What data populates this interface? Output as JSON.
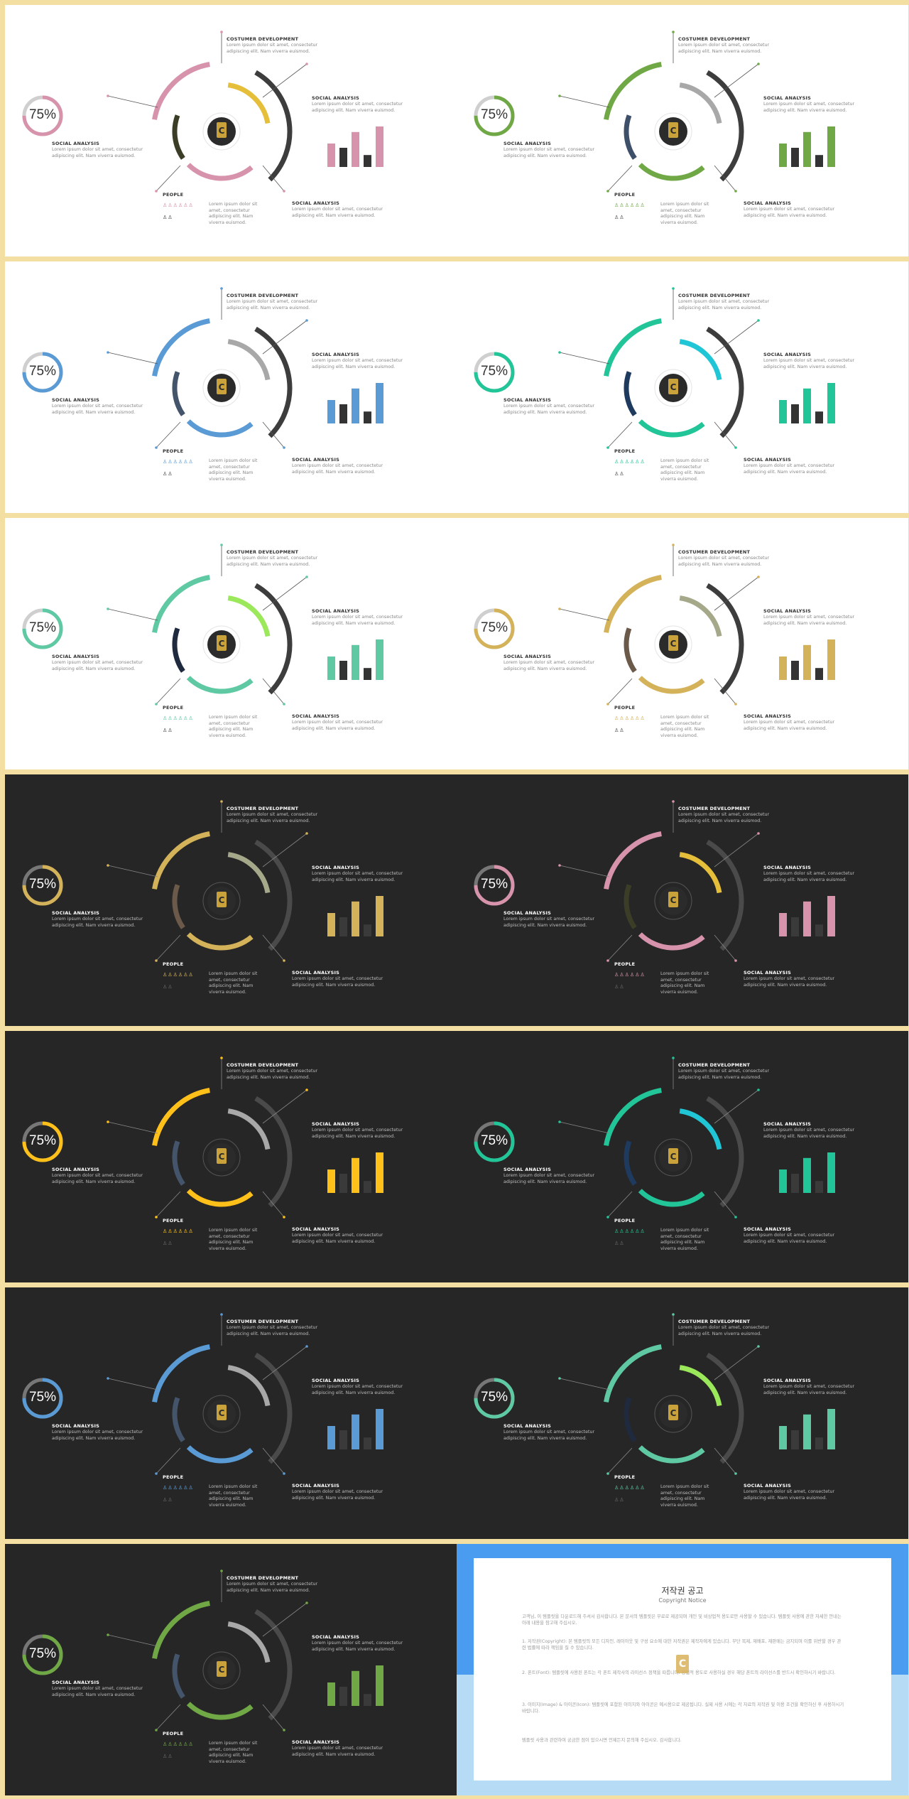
{
  "labels": {
    "costumer": "COSTUMER DEVELOPMENT",
    "social_right": "SOCIAL ANALYSIS",
    "social_bottom": "SOCIAL ANALYSIS",
    "social_left": "SOCIAL ANALYSIS",
    "people": "PEOPLE",
    "percent": "75%",
    "lorem": "Lorem ipsum dolor sit amet, consectetur adipiscing elit. Nam viverra euismod.",
    "lorem_people": "Lorem ipsum dolor sit amet, consectetur adipiscing elit. Nam viverra euismod."
  },
  "people_progress": 0.75,
  "slides": [
    {
      "theme": "light",
      "accent": "#d693ab",
      "accent2": "#e6bf3a",
      "dark": "#3b3d26"
    },
    {
      "theme": "light",
      "accent": "#70a846",
      "accent2": "#a8a8a8",
      "dark": "#3e5069"
    },
    {
      "theme": "light",
      "accent": "#5b9bd5",
      "accent2": "#a8a8a8",
      "dark": "#44546a"
    },
    {
      "theme": "light",
      "accent": "#22c597",
      "accent2": "#20c6d6",
      "dark": "#1e3a5f"
    },
    {
      "theme": "light",
      "accent": "#5fc9a3",
      "accent2": "#9be85a",
      "dark": "#1f2a3f"
    },
    {
      "theme": "light",
      "accent": "#d4b25a",
      "accent2": "#a6a88a",
      "dark": "#6b5a4a"
    },
    {
      "theme": "dark",
      "accent": "#d4b25a",
      "accent2": "#a6a88a",
      "dark": "#6b5a4a"
    },
    {
      "theme": "dark",
      "accent": "#d693ab",
      "accent2": "#e6bf3a",
      "dark": "#3b3d26"
    },
    {
      "theme": "dark",
      "accent": "#ffc01a",
      "accent2": "#a8a8a8",
      "dark": "#44546a"
    },
    {
      "theme": "dark",
      "accent": "#22c597",
      "accent2": "#20c6d6",
      "dark": "#1e3a5f"
    },
    {
      "theme": "dark",
      "accent": "#5b9bd5",
      "accent2": "#a8a8a8",
      "dark": "#44546a"
    },
    {
      "theme": "dark",
      "accent": "#5fc9a3",
      "accent2": "#9be85a",
      "dark": "#1f2a3f"
    },
    {
      "theme": "dark",
      "accent": "#70a846",
      "accent2": "#a8a8a8",
      "dark": "#44546a"
    }
  ],
  "bar_values": [
    0.55,
    0.45,
    0.82,
    0.28,
    0.95
  ],
  "copyright": {
    "title": "저작권 공고",
    "subtitle": "Copyright Notice",
    "intro": "고객님, 이 템플릿을 다운로드해 주셔서 감사합니다. 본 문서의 템플릿은 무료로 제공되며 개인 및 비상업적 용도로만 사용할 수 있습니다. 템플릿 사용에 관한 자세한 안내는 아래 내용을 참고해 주십시오.",
    "p1": "1. 저작권(Copyright): 본 템플릿의 모든 디자인, 레이아웃 및 구성 요소에 대한 저작권은 제작자에게 있습니다. 무단 복제, 재배포, 재판매는 금지되며 이를 위반할 경우 관련 법률에 따라 책임을 질 수 있습니다.",
    "p2": "2. 폰트(Font): 템플릿에 사용된 폰트는 각 폰트 제작사의 라이선스 정책을 따릅니다. 상업적 용도로 사용하실 경우 해당 폰트의 라이선스를 반드시 확인하시기 바랍니다.",
    "p3": "3. 이미지(Image) & 아이콘(Icon): 템플릿에 포함된 이미지와 아이콘은 예시용으로 제공됩니다. 실제 사용 시에는 각 자료의 저작권 및 이용 조건을 확인하신 후 사용하시기 바랍니다.",
    "outro": "템플릿 사용과 관련하여 궁금한 점이 있으시면 언제든지 문의해 주십시오. 감사합니다."
  }
}
